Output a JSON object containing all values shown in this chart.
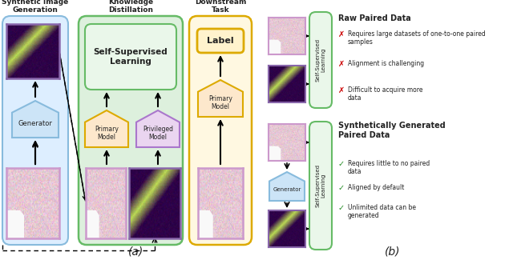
{
  "fig_width": 6.4,
  "fig_height": 3.25,
  "dpi": 100,
  "bg_color": "#ffffff",
  "titles": {
    "panel1": "Synthetic Image\nGeneration",
    "panel2": "Knowledge\nDistillation",
    "panel3": "Downstream\nTask",
    "panel_a": "(a)",
    "panel_b": "(b)"
  },
  "colors": {
    "blue_box_fill": "#ddeeff",
    "blue_box_edge": "#88bbdd",
    "green_box_fill": "#ddf0dd",
    "green_box_edge": "#66bb66",
    "yellow_box_fill": "#fff8e1",
    "yellow_box_edge": "#ddaa00",
    "orange_pent_fill": "#fde8cc",
    "orange_pent_edge": "#ddaa00",
    "purple_pent_fill": "#ead5f0",
    "purple_pent_edge": "#aa77cc",
    "blue_pent_fill": "#cce4f7",
    "blue_pent_edge": "#88bbdd",
    "label_box_fill": "#fff3cd",
    "label_box_edge": "#ddaa00",
    "ssl_inner_fill": "#eaf7ea",
    "ssl_inner_edge": "#66bb66",
    "cross_color": "#cc0000",
    "check_color": "#228B22",
    "arrow_color": "#111111",
    "text_color": "#222222"
  },
  "raw_bullets": [
    "Requires large datasets of one-to-one paired\nsamples",
    "Alignment is challenging",
    "Difficult to acquire more\ndata"
  ],
  "syn_bullets": [
    "Requires little to no paired\ndata",
    "Aligned by default",
    "Unlimited data can be\ngenerated"
  ]
}
